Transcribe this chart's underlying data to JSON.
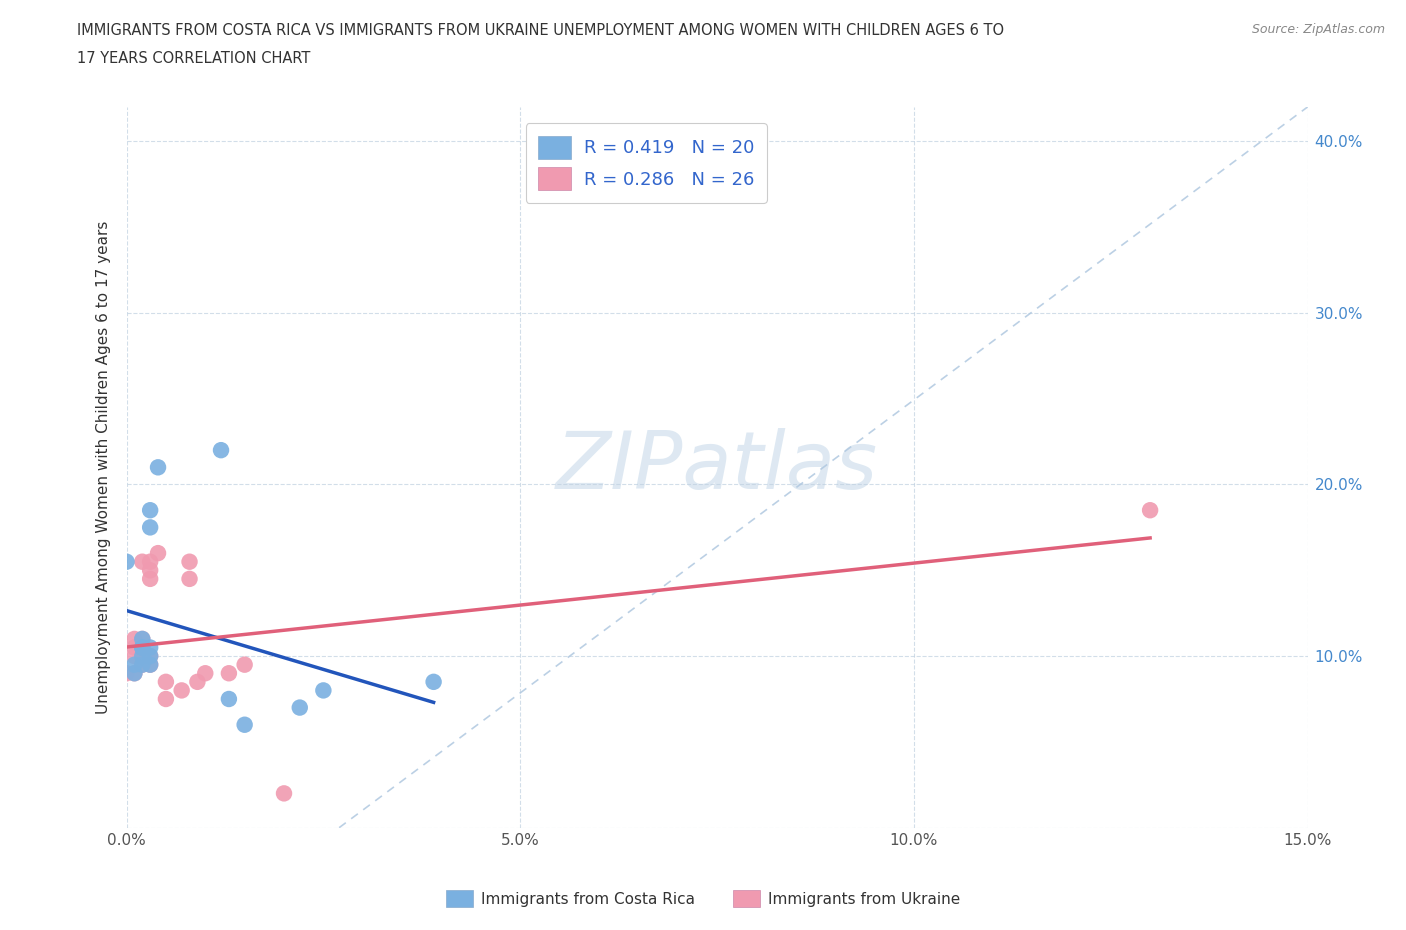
{
  "title_line1": "IMMIGRANTS FROM COSTA RICA VS IMMIGRANTS FROM UKRAINE UNEMPLOYMENT AMONG WOMEN WITH CHILDREN AGES 6 TO",
  "title_line2": "17 YEARS CORRELATION CHART",
  "source": "Source: ZipAtlas.com",
  "ylabel": "Unemployment Among Women with Children Ages 6 to 17 years",
  "xlim": [
    0.0,
    0.15
  ],
  "ylim": [
    0.0,
    0.42
  ],
  "xticks": [
    0.0,
    0.05,
    0.1,
    0.15
  ],
  "xtick_labels": [
    "0.0%",
    "5.0%",
    "10.0%",
    "15.0%"
  ],
  "yticks": [
    0.0,
    0.1,
    0.2,
    0.3,
    0.4
  ],
  "ytick_labels_right": [
    "",
    "10.0%",
    "20.0%",
    "30.0%",
    "40.0%"
  ],
  "watermark": "ZIPatlas",
  "legend_entries": [
    {
      "label": "R = 0.419   N = 20",
      "color": "#a8c8f0"
    },
    {
      "label": "R = 0.286   N = 26",
      "color": "#f0a8c0"
    }
  ],
  "legend_label1": "Immigrants from Costa Rica",
  "legend_label2": "Immigrants from Ukraine",
  "costa_rica_color": "#7ab0e0",
  "ukraine_color": "#f09ab0",
  "costa_rica_line_color": "#2255bb",
  "ukraine_line_color": "#e0607a",
  "diagonal_color": "#b0c8e0",
  "costa_rica_points": [
    [
      0.0,
      0.155
    ],
    [
      0.001,
      0.09
    ],
    [
      0.001,
      0.095
    ],
    [
      0.002,
      0.095
    ],
    [
      0.002,
      0.1
    ],
    [
      0.002,
      0.105
    ],
    [
      0.002,
      0.105
    ],
    [
      0.002,
      0.11
    ],
    [
      0.003,
      0.095
    ],
    [
      0.003,
      0.1
    ],
    [
      0.003,
      0.105
    ],
    [
      0.003,
      0.175
    ],
    [
      0.003,
      0.185
    ],
    [
      0.004,
      0.21
    ],
    [
      0.012,
      0.22
    ],
    [
      0.013,
      0.075
    ],
    [
      0.015,
      0.06
    ],
    [
      0.022,
      0.07
    ],
    [
      0.025,
      0.08
    ],
    [
      0.039,
      0.085
    ]
  ],
  "ukraine_points": [
    [
      0.0,
      0.09
    ],
    [
      0.001,
      0.09
    ],
    [
      0.001,
      0.1
    ],
    [
      0.001,
      0.105
    ],
    [
      0.001,
      0.11
    ],
    [
      0.002,
      0.095
    ],
    [
      0.002,
      0.1
    ],
    [
      0.002,
      0.11
    ],
    [
      0.002,
      0.155
    ],
    [
      0.003,
      0.095
    ],
    [
      0.003,
      0.1
    ],
    [
      0.003,
      0.145
    ],
    [
      0.003,
      0.15
    ],
    [
      0.003,
      0.155
    ],
    [
      0.004,
      0.16
    ],
    [
      0.005,
      0.075
    ],
    [
      0.005,
      0.085
    ],
    [
      0.007,
      0.08
    ],
    [
      0.008,
      0.145
    ],
    [
      0.008,
      0.155
    ],
    [
      0.009,
      0.085
    ],
    [
      0.01,
      0.09
    ],
    [
      0.013,
      0.09
    ],
    [
      0.015,
      0.095
    ],
    [
      0.02,
      0.02
    ],
    [
      0.13,
      0.185
    ]
  ]
}
